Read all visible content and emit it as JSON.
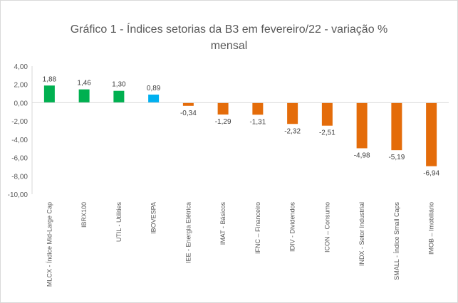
{
  "chart_data": {
    "type": "bar",
    "title_line1": "Gráfico 1 - Índices setorias da B3 em fevereiro/22 - variação %",
    "title_line2": "mensal",
    "xlabel": "",
    "ylabel": "",
    "ylim": [
      -10,
      4
    ],
    "yticks": [
      4,
      2,
      0,
      -2,
      -4,
      -6,
      -8,
      -10
    ],
    "ytick_labels": [
      "4,00",
      "2,00",
      "0,00",
      "-2,00",
      "-4,00",
      "-6,00",
      "-8,00",
      "-10,00"
    ],
    "grid": false,
    "legend": "none",
    "categories": [
      "MLCX - Índice Mid-Large Cap",
      "IBRX100",
      "UTIL - Utilities",
      "IBOVESPA",
      "IEE - Energia Elétrica",
      "IMAT - Básicos",
      "IFNC – Financeiro",
      "IDIV - Dividendos",
      "ICON – Consumo",
      "INDX - Setor Industrial",
      "SMALL - Índice Small Caps",
      "IMOB – Imobiliário"
    ],
    "values": [
      1.88,
      1.46,
      1.3,
      0.89,
      -0.34,
      -1.29,
      -1.31,
      -2.32,
      -2.51,
      -4.98,
      -5.19,
      -6.94
    ],
    "data_labels": [
      "1,88",
      "1,46",
      "1,30",
      "0,89",
      "-0,34",
      "-1,29",
      "-1,31",
      "-2,32",
      "-2,51",
      "-4,98",
      "-5,19",
      "-6,94"
    ],
    "colors": [
      "#00b050",
      "#00b050",
      "#00b050",
      "#00b0f0",
      "#e46c0a",
      "#e46c0a",
      "#e46c0a",
      "#e46c0a",
      "#e46c0a",
      "#e46c0a",
      "#e46c0a",
      "#e46c0a"
    ]
  }
}
